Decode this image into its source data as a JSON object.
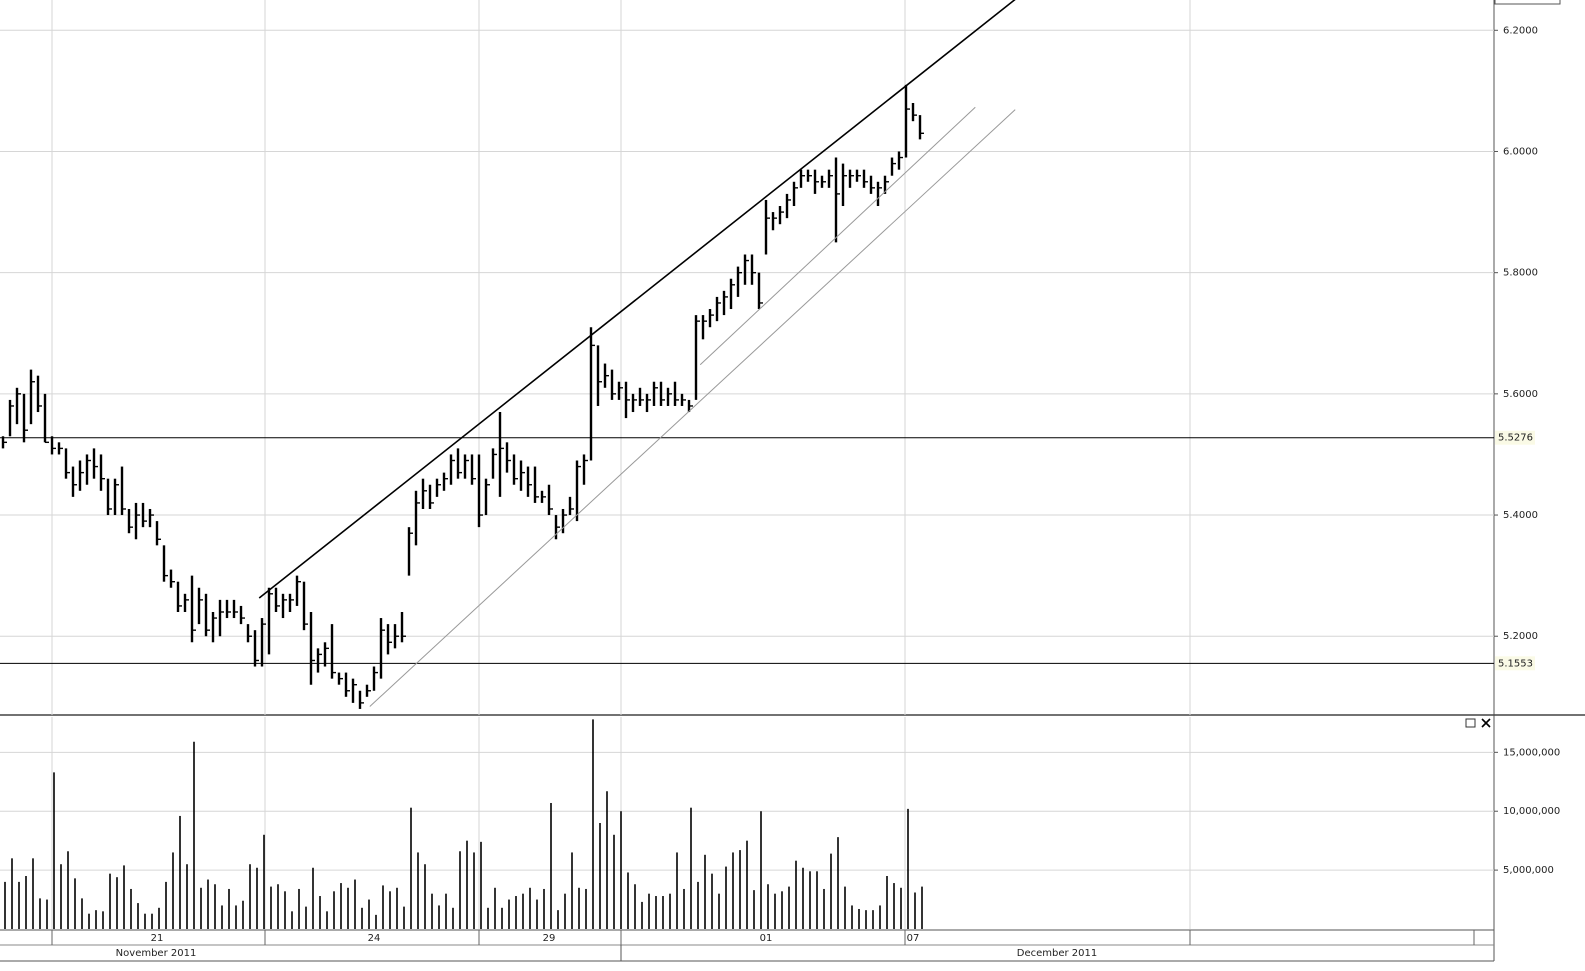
{
  "chart_data": [
    {
      "type": "ohlc",
      "categories": [
        null,
        null,
        null,
        null,
        null,
        null,
        null,
        null,
        null,
        null,
        null,
        null,
        null,
        null,
        null,
        null,
        null,
        null,
        null,
        null,
        null,
        null,
        "21",
        null,
        null,
        null,
        null,
        null,
        null,
        null,
        null,
        null,
        null,
        null,
        null,
        null,
        null,
        null,
        null,
        null,
        null,
        null,
        null,
        null,
        null,
        null,
        null,
        null,
        null,
        null,
        null,
        null,
        null,
        "24",
        null,
        null,
        null,
        null,
        null,
        null,
        null,
        null,
        null,
        null,
        null,
        null,
        null,
        null,
        null,
        null,
        null,
        null,
        null,
        null,
        null,
        null,
        null,
        null,
        "29",
        null,
        null,
        null,
        null,
        null,
        null,
        null,
        null,
        null,
        null,
        null,
        null,
        null,
        null,
        null,
        null,
        null,
        null,
        null,
        null,
        null,
        null,
        null,
        null,
        null,
        null,
        null,
        null,
        null,
        null,
        "01",
        null,
        null,
        null,
        null,
        null,
        null,
        null,
        null,
        null,
        null,
        null,
        null,
        null,
        null,
        null,
        null,
        null,
        null,
        null,
        null,
        "07",
        null
      ],
      "month_labels": [
        "November 2011",
        "December 2011"
      ],
      "high": [
        5.53,
        5.59,
        5.61,
        5.6,
        5.64,
        5.63,
        5.6,
        5.53,
        5.52,
        5.51,
        5.48,
        5.49,
        5.5,
        5.51,
        5.5,
        5.46,
        5.46,
        5.48,
        5.41,
        5.42,
        5.42,
        5.41,
        5.39,
        5.35,
        5.31,
        5.29,
        5.27,
        5.3,
        5.28,
        5.27,
        5.24,
        5.26,
        5.26,
        5.26,
        5.25,
        5.22,
        5.21,
        5.23,
        5.28,
        5.28,
        5.27,
        5.27,
        5.3,
        5.29,
        5.24,
        5.18,
        5.19,
        5.22,
        5.14,
        5.14,
        5.13,
        5.11,
        5.12,
        5.15,
        5.23,
        5.22,
        5.22,
        5.24,
        5.38,
        5.44,
        5.46,
        5.45,
        5.46,
        5.47,
        5.5,
        5.51,
        5.5,
        5.5,
        5.5,
        5.46,
        5.51,
        5.57,
        5.52,
        5.5,
        5.49,
        5.48,
        5.48,
        5.44,
        5.45,
        5.4,
        5.41,
        5.43,
        5.49,
        5.5,
        5.71,
        5.68,
        5.65,
        5.64,
        5.62,
        5.62,
        5.6,
        5.61,
        5.6,
        5.62,
        5.62,
        5.61,
        5.62,
        5.6,
        5.59,
        5.73,
        5.73,
        5.74,
        5.76,
        5.77,
        5.79,
        5.81,
        5.83,
        5.83,
        5.8,
        5.92,
        5.9,
        5.91,
        5.93,
        5.95,
        5.97,
        5.97,
        5.97,
        5.96,
        5.97,
        5.99,
        5.98,
        5.97,
        5.97,
        5.97,
        5.96,
        5.95,
        5.96,
        5.99,
        6.0,
        6.11,
        6.08,
        6.06
      ],
      "low": [
        5.51,
        5.53,
        5.55,
        5.52,
        5.55,
        5.57,
        5.52,
        5.5,
        5.5,
        5.46,
        5.43,
        5.44,
        5.45,
        5.46,
        5.44,
        5.4,
        5.4,
        5.4,
        5.37,
        5.36,
        5.38,
        5.38,
        5.35,
        5.29,
        5.28,
        5.24,
        5.24,
        5.19,
        5.22,
        5.2,
        5.19,
        5.2,
        5.23,
        5.23,
        5.22,
        5.19,
        5.15,
        5.15,
        5.17,
        5.24,
        5.23,
        5.24,
        5.25,
        5.21,
        5.12,
        5.14,
        5.15,
        5.13,
        5.12,
        5.1,
        5.09,
        5.08,
        5.1,
        5.11,
        5.13,
        5.17,
        5.18,
        5.19,
        5.3,
        5.35,
        5.41,
        5.41,
        5.43,
        5.44,
        5.45,
        5.46,
        5.46,
        5.45,
        5.38,
        5.4,
        5.46,
        5.43,
        5.47,
        5.45,
        5.44,
        5.43,
        5.42,
        5.42,
        5.4,
        5.36,
        5.37,
        5.4,
        5.39,
        5.45,
        5.49,
        5.58,
        5.61,
        5.59,
        5.59,
        5.56,
        5.57,
        5.58,
        5.57,
        5.58,
        5.58,
        5.58,
        5.58,
        5.58,
        5.57,
        5.59,
        5.69,
        5.71,
        5.72,
        5.73,
        5.74,
        5.76,
        5.78,
        5.78,
        5.74,
        5.83,
        5.87,
        5.88,
        5.89,
        5.91,
        5.94,
        5.95,
        5.93,
        5.94,
        5.94,
        5.85,
        5.91,
        5.94,
        5.95,
        5.94,
        5.93,
        5.91,
        5.93,
        5.96,
        5.97,
        5.99,
        6.05,
        6.02
      ],
      "close": [
        5.52,
        5.58,
        5.6,
        5.54,
        5.62,
        5.58,
        5.52,
        5.51,
        5.51,
        5.47,
        5.45,
        5.47,
        5.49,
        5.48,
        5.46,
        5.41,
        5.45,
        5.41,
        5.38,
        5.4,
        5.39,
        5.4,
        5.36,
        5.3,
        5.29,
        5.25,
        5.26,
        5.21,
        5.26,
        5.21,
        5.23,
        5.24,
        5.24,
        5.24,
        5.23,
        5.2,
        5.16,
        5.22,
        5.27,
        5.25,
        5.26,
        5.26,
        5.29,
        5.22,
        5.16,
        5.17,
        5.18,
        5.14,
        5.13,
        5.11,
        5.12,
        5.09,
        5.11,
        5.14,
        5.21,
        5.19,
        5.2,
        5.2,
        5.37,
        5.42,
        5.44,
        5.42,
        5.45,
        5.46,
        5.49,
        5.47,
        5.49,
        5.46,
        5.4,
        5.45,
        5.5,
        5.51,
        5.49,
        5.46,
        5.47,
        5.45,
        5.43,
        5.43,
        5.41,
        5.38,
        5.4,
        5.41,
        5.48,
        5.49,
        5.68,
        5.62,
        5.63,
        5.6,
        5.61,
        5.59,
        5.59,
        5.59,
        5.59,
        5.61,
        5.59,
        5.6,
        5.59,
        5.59,
        5.58,
        5.72,
        5.72,
        5.73,
        5.75,
        5.76,
        5.78,
        5.8,
        5.82,
        5.8,
        5.75,
        5.89,
        5.89,
        5.9,
        5.92,
        5.94,
        5.96,
        5.96,
        5.95,
        5.95,
        5.96,
        5.93,
        5.96,
        5.96,
        5.96,
        5.95,
        5.94,
        5.94,
        5.95,
        5.98,
        5.99,
        6.07,
        6.06,
        6.03
      ],
      "color": "#000000",
      "ylim": [
        5.07,
        6.25
      ],
      "yticks": [
        {
          "value": 5.2,
          "label": "5.2000"
        },
        {
          "value": 5.4,
          "label": "5.4000"
        },
        {
          "value": 5.6,
          "label": "5.6000"
        },
        {
          "value": 5.8,
          "label": "5.8000"
        },
        {
          "value": 6.0,
          "label": "6.0000"
        },
        {
          "value": 6.2,
          "label": "6.2000"
        }
      ],
      "grid": true,
      "levels": {
        "values": [
          5.5276,
          5.1553
        ],
        "value_labels": [
          "5.5276",
          "5.1553"
        ]
      },
      "trendlines": [
        {
          "x": [
            36.6,
            144.6
          ],
          "y": [
            5.263,
            6.251
          ],
          "color": "#000000"
        },
        {
          "x": [
            99.6,
            138.9
          ],
          "y": [
            5.648,
            6.073
          ],
          "color": "#999999"
        },
        {
          "x": [
            52.4,
            144.6
          ],
          "y": [
            5.084,
            6.069
          ],
          "color": "#999999"
        }
      ]
    },
    {
      "type": "bar",
      "values": [
        4000000,
        6000000,
        4000000,
        4500000,
        6000000,
        2600000,
        2500000,
        13300000,
        5500000,
        6600000,
        4300000,
        2600000,
        1300000,
        1600000,
        1500000,
        4700000,
        4400000,
        5400000,
        3400000,
        2200000,
        1300000,
        1300000,
        1800000,
        4000000,
        6500000,
        9600000,
        5500000,
        15900000,
        3500000,
        4200000,
        3800000,
        2000000,
        3400000,
        2000000,
        2400000,
        5500000,
        5200000,
        8000000,
        3600000,
        3800000,
        3200000,
        1500000,
        3400000,
        1900000,
        5200000,
        2800000,
        1500000,
        3200000,
        3900000,
        3500000,
        4200000,
        1800000,
        2500000,
        1200000,
        3700000,
        3200000,
        3500000,
        1900000,
        10300000,
        6500000,
        5500000,
        3000000,
        2000000,
        3000000,
        1800000,
        6600000,
        7500000,
        6500000,
        7400000,
        1800000,
        3500000,
        1800000,
        2500000,
        2800000,
        3000000,
        3500000,
        2500000,
        3400000,
        10700000,
        1600000,
        3000000,
        6500000,
        3500000,
        3400000,
        17800000,
        9000000,
        11700000,
        8000000,
        10000000,
        4800000,
        3800000,
        2300000,
        3000000,
        2800000,
        2800000,
        3000000,
        6500000,
        3400000,
        10300000,
        4000000,
        6300000,
        4700000,
        3000000,
        5300000,
        6500000,
        6700000,
        7500000,
        3300000,
        10000000,
        3800000,
        3000000,
        3200000,
        3600000,
        5800000,
        5200000,
        4900000,
        4900000,
        3400000,
        6400000,
        7800000,
        3600000,
        2000000,
        1700000,
        1600000,
        1600000,
        2000000,
        4500000,
        3900000,
        3500000,
        10200000,
        3100000,
        3600000
      ],
      "color": "#000000",
      "ylim": [
        0,
        18000000
      ],
      "yticks": [
        {
          "value": 5000000,
          "label": "5,000,000"
        },
        {
          "value": 10000000,
          "label": "10,000,000"
        },
        {
          "value": 15000000,
          "label": "15,000,000"
        }
      ],
      "grid": true
    }
  ]
}
